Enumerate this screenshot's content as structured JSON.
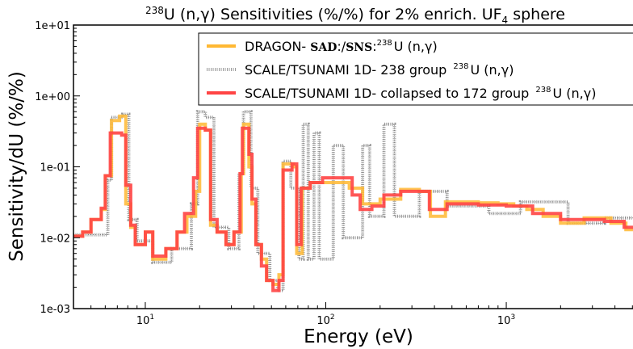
{
  "chart_data": {
    "type": "line",
    "title_prefix": "238",
    "title_main": "U (n,γ) Sensitivities (%/%) for 2% enrich. UF",
    "title_sub": "4",
    "title_suffix": " sphere",
    "xlabel": "Energy (eV)",
    "ylabel": "Sensitivity/dU (%/%)",
    "x_scale": "log",
    "y_scale": "log",
    "xlim": [
      4,
      6000
    ],
    "ylim": [
      0.001,
      10
    ],
    "x_tick_labels": [
      {
        "value": 10,
        "base": "10",
        "exp": "1"
      },
      {
        "value": 100,
        "base": "10",
        "exp": "2"
      },
      {
        "value": 1000,
        "base": "10",
        "exp": "3"
      }
    ],
    "y_tick_labels": [
      {
        "value": 10,
        "label": "1e+01"
      },
      {
        "value": 1,
        "label": "1e+00"
      },
      {
        "value": 0.1,
        "label": "1e-01"
      },
      {
        "value": 0.01,
        "label": "1e-02"
      },
      {
        "value": 0.001,
        "label": "1e-03"
      }
    ],
    "grid": false,
    "legend_position": "top-right",
    "series": [
      {
        "key": "dragon",
        "legend_pre": "DRAGON- ",
        "legend_bold": "SAD",
        "legend_mid": ":/",
        "legend_bold2": "SNS",
        "legend_colon": ":",
        "legend_sup": "238",
        "legend_post": "U (n,γ)",
        "color": "#FFB833",
        "style": "step",
        "points": [
          [
            4,
            0.0105
          ],
          [
            4.5,
            0.012
          ],
          [
            5,
            0.018
          ],
          [
            5.7,
            0.025
          ],
          [
            6,
            0.075
          ],
          [
            6.5,
            0.45
          ],
          [
            7.2,
            0.52
          ],
          [
            7.8,
            0.03
          ],
          [
            8.3,
            0.014
          ],
          [
            8.8,
            0.008
          ],
          [
            10,
            0.012
          ],
          [
            11,
            0.005
          ],
          [
            13,
            0.007
          ],
          [
            15,
            0.012
          ],
          [
            17,
            0.02
          ],
          [
            19,
            0.045
          ],
          [
            20,
            0.4
          ],
          [
            21.5,
            0.33
          ],
          [
            23,
            0.015
          ],
          [
            25,
            0.012
          ],
          [
            28,
            0.008
          ],
          [
            31,
            0.012
          ],
          [
            34,
            0.08
          ],
          [
            35,
            0.4
          ],
          [
            37.5,
            0.1
          ],
          [
            39,
            0.03
          ],
          [
            41,
            0.008
          ],
          [
            44,
            0.005
          ],
          [
            47,
            0.0025
          ],
          [
            51,
            0.0022
          ],
          [
            55,
            0.003
          ],
          [
            58,
            0.11
          ],
          [
            66,
            0.1
          ],
          [
            69,
            0.006
          ],
          [
            74,
            0.05
          ],
          [
            82,
            0.06
          ],
          [
            135,
            0.05
          ],
          [
            160,
            0.03
          ],
          [
            200,
            0.035
          ],
          [
            260,
            0.048
          ],
          [
            330,
            0.045
          ],
          [
            380,
            0.02
          ],
          [
            460,
            0.032
          ],
          [
            700,
            0.031
          ],
          [
            900,
            0.03
          ],
          [
            1100,
            0.028
          ],
          [
            1300,
            0.025
          ],
          [
            1600,
            0.02
          ],
          [
            2000,
            0.016
          ],
          [
            2700,
            0.019
          ],
          [
            3800,
            0.016
          ],
          [
            4600,
            0.013
          ],
          [
            6000,
            0.013
          ]
        ]
      },
      {
        "key": "scale238",
        "legend_pre": "SCALE/TSUNAMI 1D- 238 group ",
        "legend_sup": "238",
        "legend_post": "U (n,γ)",
        "color": "#999999",
        "style": "hatch",
        "points": [
          [
            4,
            0.011
          ],
          [
            6.2,
            0.065
          ],
          [
            6.5,
            0.5
          ],
          [
            7.5,
            0.55
          ],
          [
            8.1,
            0.018
          ],
          [
            9,
            0.009
          ],
          [
            11,
            0.0045
          ],
          [
            14,
            0.007
          ],
          [
            18,
            0.03
          ],
          [
            19.5,
            0.6
          ],
          [
            21.5,
            0.5
          ],
          [
            24,
            0.014
          ],
          [
            29,
            0.007
          ],
          [
            33,
            0.08
          ],
          [
            35,
            0.6
          ],
          [
            38.5,
            0.05
          ],
          [
            42,
            0.006
          ],
          [
            49,
            0.0025
          ],
          [
            54,
            0.0018
          ],
          [
            58,
            0.12
          ],
          [
            64,
            0.05
          ],
          [
            71,
            0.005
          ],
          [
            75,
            0.4
          ],
          [
            80,
            0.005
          ],
          [
            86,
            0.3
          ],
          [
            92,
            0.005
          ],
          [
            110,
            0.2
          ],
          [
            125,
            0.01
          ],
          [
            160,
            0.2
          ],
          [
            175,
            0.02
          ],
          [
            210,
            0.4
          ],
          [
            240,
            0.02
          ],
          [
            330,
            0.045
          ],
          [
            470,
            0.028
          ],
          [
            800,
            0.022
          ],
          [
            1200,
            0.032
          ],
          [
            2200,
            0.016
          ],
          [
            3500,
            0.019
          ],
          [
            6000,
            0.013
          ]
        ]
      },
      {
        "key": "scale172",
        "legend_pre": "SCALE/TSUNAMI 1D- collapsed to 172 group ",
        "legend_sup": "238",
        "legend_post": "U (n,γ)",
        "color": "#FF4444",
        "style": "step",
        "points": [
          [
            4,
            0.0105
          ],
          [
            4.5,
            0.012
          ],
          [
            5,
            0.018
          ],
          [
            5.7,
            0.026
          ],
          [
            6,
            0.075
          ],
          [
            6.4,
            0.3
          ],
          [
            7.4,
            0.28
          ],
          [
            7.8,
            0.055
          ],
          [
            8.3,
            0.015
          ],
          [
            8.8,
            0.008
          ],
          [
            10,
            0.012
          ],
          [
            11,
            0.0055
          ],
          [
            13,
            0.007
          ],
          [
            15,
            0.012
          ],
          [
            16.5,
            0.022
          ],
          [
            18.5,
            0.07
          ],
          [
            19.5,
            0.35
          ],
          [
            21.5,
            0.33
          ],
          [
            23,
            0.018
          ],
          [
            25,
            0.012
          ],
          [
            28,
            0.008
          ],
          [
            31,
            0.012
          ],
          [
            33.5,
            0.08
          ],
          [
            34.5,
            0.35
          ],
          [
            37.5,
            0.15
          ],
          [
            39,
            0.035
          ],
          [
            41,
            0.008
          ],
          [
            44,
            0.004
          ],
          [
            47,
            0.0025
          ],
          [
            51,
            0.0018
          ],
          [
            55,
            0.0025
          ],
          [
            58,
            0.09
          ],
          [
            65,
            0.11
          ],
          [
            69,
            0.008
          ],
          [
            73,
            0.05
          ],
          [
            82,
            0.06
          ],
          [
            96,
            0.07
          ],
          [
            140,
            0.04
          ],
          [
            155,
            0.025
          ],
          [
            180,
            0.028
          ],
          [
            210,
            0.04
          ],
          [
            260,
            0.045
          ],
          [
            330,
            0.045
          ],
          [
            375,
            0.025
          ],
          [
            470,
            0.03
          ],
          [
            700,
            0.029
          ],
          [
            1000,
            0.028
          ],
          [
            1400,
            0.022
          ],
          [
            2000,
            0.018
          ],
          [
            2800,
            0.018
          ],
          [
            3500,
            0.017
          ],
          [
            4500,
            0.014
          ],
          [
            6000,
            0.013
          ]
        ]
      }
    ]
  }
}
